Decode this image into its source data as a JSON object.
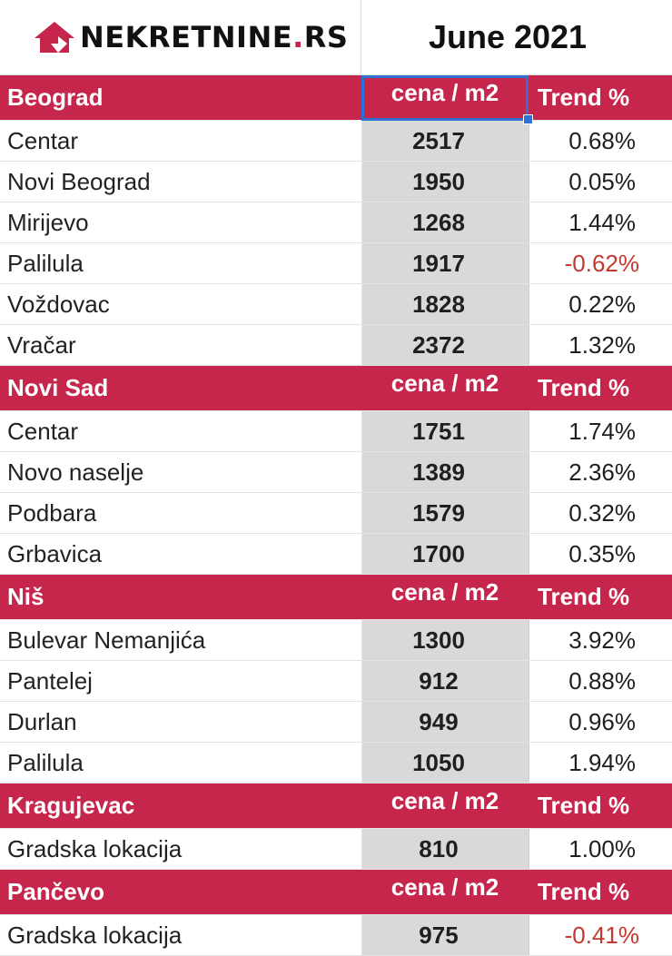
{
  "header": {
    "logo_text": "NEKRETNINE",
    "logo_dot": ".",
    "logo_suffix": "RS",
    "title": "June 2021"
  },
  "colors": {
    "accent": "#c6254c",
    "negative": "#c5382e",
    "price_bg": "#d9d9d9",
    "selection": "#2f6fd6"
  },
  "column_labels": {
    "price": "cena / m2",
    "trend": "Trend %"
  },
  "regions": [
    {
      "name": "Beograd",
      "rows": [
        {
          "name": "Centar",
          "price": "2517",
          "trend": "0.68%"
        },
        {
          "name": "Novi Beograd",
          "price": "1950",
          "trend": "0.05%"
        },
        {
          "name": "Mirijevo",
          "price": "1268",
          "trend": "1.44%"
        },
        {
          "name": "Palilula",
          "price": "1917",
          "trend": "-0.62%"
        },
        {
          "name": "Voždovac",
          "price": "1828",
          "trend": "0.22%"
        },
        {
          "name": "Vračar",
          "price": "2372",
          "trend": "1.32%"
        }
      ]
    },
    {
      "name": "Novi Sad",
      "rows": [
        {
          "name": "Centar",
          "price": "1751",
          "trend": "1.74%"
        },
        {
          "name": "Novo naselje",
          "price": "1389",
          "trend": "2.36%"
        },
        {
          "name": "Podbara",
          "price": "1579",
          "trend": "0.32%"
        },
        {
          "name": "Grbavica",
          "price": "1700",
          "trend": "0.35%"
        }
      ]
    },
    {
      "name": "Niš",
      "rows": [
        {
          "name": "Bulevar Nemanjića",
          "price": "1300",
          "trend": "3.92%"
        },
        {
          "name": "Pantelej",
          "price": "912",
          "trend": "0.88%"
        },
        {
          "name": "Durlan",
          "price": "949",
          "trend": "0.96%"
        },
        {
          "name": "Palilula",
          "price": "1050",
          "trend": "1.94%"
        }
      ]
    },
    {
      "name": "Kragujevac",
      "rows": [
        {
          "name": "Gradska lokacija",
          "price": "810",
          "trend": "1.00%"
        }
      ]
    },
    {
      "name": "Pančevo",
      "rows": [
        {
          "name": "Gradska lokacija",
          "price": "975",
          "trend": "-0.41%"
        }
      ]
    }
  ]
}
